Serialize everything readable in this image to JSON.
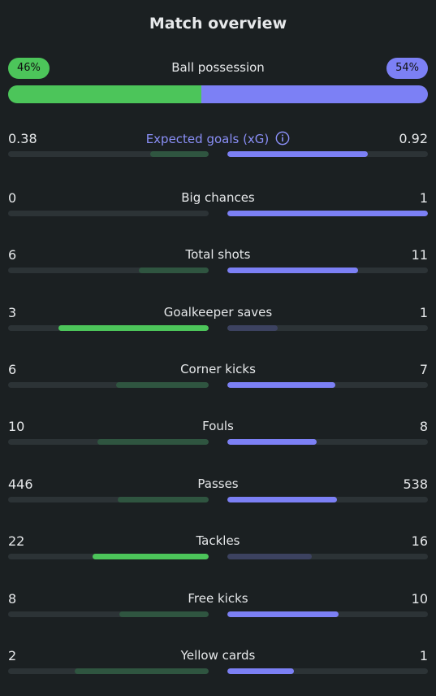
{
  "title": "Match overview",
  "colors": {
    "home_win": "#4cc55a",
    "home_lose": "#2f5540",
    "away_win": "#7c80f5",
    "away_lose": "#3c4260",
    "track": "#2c3336",
    "accent_label": "#8a8ff7"
  },
  "possession": {
    "label": "Ball possession",
    "home": "46%",
    "away": "54%",
    "home_fraction": 0.46
  },
  "stats": [
    {
      "label": "Expected goals (xG)",
      "home": "0.38",
      "away": "0.92",
      "home_frac": 0.29,
      "away_frac": 0.7,
      "winner": "away",
      "accent": true,
      "info_icon": "info-icon"
    },
    {
      "label": "Big chances",
      "home": "0",
      "away": "1",
      "home_frac": 0.0,
      "away_frac": 1.0,
      "winner": "away"
    },
    {
      "label": "Total shots",
      "home": "6",
      "away": "11",
      "home_frac": 0.35,
      "away_frac": 0.65,
      "winner": "away"
    },
    {
      "label": "Goalkeeper saves",
      "home": "3",
      "away": "1",
      "home_frac": 0.75,
      "away_frac": 0.25,
      "winner": "home"
    },
    {
      "label": "Corner kicks",
      "home": "6",
      "away": "7",
      "home_frac": 0.46,
      "away_frac": 0.54,
      "winner": "away"
    },
    {
      "label": "Fouls",
      "home": "10",
      "away": "8",
      "home_frac": 0.555,
      "away_frac": 0.445,
      "winner": "away"
    },
    {
      "label": "Passes",
      "home": "446",
      "away": "538",
      "home_frac": 0.453,
      "away_frac": 0.547,
      "winner": "away"
    },
    {
      "label": "Tackles",
      "home": "22",
      "away": "16",
      "home_frac": 0.58,
      "away_frac": 0.42,
      "winner": "home"
    },
    {
      "label": "Free kicks",
      "home": "8",
      "away": "10",
      "home_frac": 0.444,
      "away_frac": 0.556,
      "winner": "away"
    },
    {
      "label": "Yellow cards",
      "home": "2",
      "away": "1",
      "home_frac": 0.667,
      "away_frac": 0.333,
      "winner": "away"
    }
  ]
}
